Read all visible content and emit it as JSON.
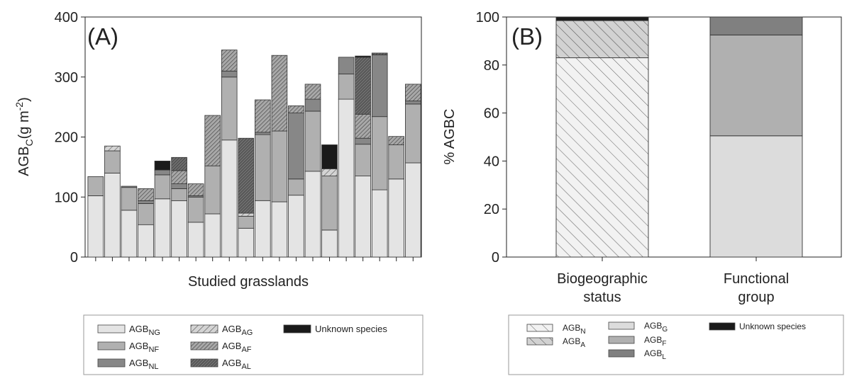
{
  "panel_a": {
    "label": "(A)",
    "ylabel": "AGBC(g m-2)",
    "xlabel": "Studied grasslands",
    "yticks": [
      "0",
      "100",
      "200",
      "300",
      "400"
    ],
    "legend": [
      {
        "key": "NG",
        "base": "AGB",
        "sub": "NG"
      },
      {
        "key": "AG",
        "base": "AGB",
        "sub": "AG"
      },
      {
        "key": "UNK",
        "base": "Unknown species",
        "sub": ""
      },
      {
        "key": "NF",
        "base": "AGB",
        "sub": "NF"
      },
      {
        "key": "AF",
        "base": "AGB",
        "sub": "AF"
      },
      {
        "key": "NL",
        "base": "AGB",
        "sub": "NL"
      },
      {
        "key": "AL",
        "base": "AGB",
        "sub": "AL"
      }
    ]
  },
  "panel_b": {
    "label": "(B)",
    "ylabel": "% AGBC",
    "yticks": [
      "0",
      "20",
      "40",
      "60",
      "80",
      "100"
    ],
    "categories": [
      [
        "Biogeographic",
        "status"
      ],
      [
        "Functional",
        "group"
      ]
    ],
    "legend": [
      {
        "key": "N",
        "base": "AGB",
        "sub": "N"
      },
      {
        "key": "G",
        "base": "AGB",
        "sub": "G"
      },
      {
        "key": "UNK",
        "base": "Unknown species",
        "sub": ""
      },
      {
        "key": "A",
        "base": "AGB",
        "sub": "A"
      },
      {
        "key": "F",
        "base": "AGB",
        "sub": "F"
      },
      {
        "key": "L",
        "base": "AGB",
        "sub": "L"
      }
    ]
  },
  "styles": {
    "NG": {
      "fill": "#e4e4e4",
      "hatch": "none"
    },
    "NF": {
      "fill": "#b0b0b0",
      "hatch": "none"
    },
    "NL": {
      "fill": "#878787",
      "hatch": "none"
    },
    "AG": {
      "fill": "#d4d4d4",
      "hatch": "sparse"
    },
    "AF": {
      "fill": "#a8a8a8",
      "hatch": "medium"
    },
    "AL": {
      "fill": "#6e6e6e",
      "hatch": "dense"
    },
    "UNK": {
      "fill": "#1a1a1a",
      "hatch": "none"
    },
    "N": {
      "fill": "#f2f2f2",
      "hatch": "back"
    },
    "A": {
      "fill": "#d2d2d2",
      "hatch": "back"
    },
    "G": {
      "fill": "#dcdcdc",
      "hatch": "none"
    },
    "F": {
      "fill": "#b0b0b0",
      "hatch": "none"
    },
    "L": {
      "fill": "#808080",
      "hatch": "none"
    }
  },
  "chart_data": [
    {
      "type": "bar",
      "stacked": true,
      "title": "(A)",
      "xlabel": "Studied grasslands",
      "ylabel": "AGBC(g m-2)",
      "ylim": [
        0,
        400
      ],
      "grid": false,
      "categories": [
        "",
        "",
        "",
        "",
        "",
        "",
        "",
        "",
        "",
        "",
        "",
        "",
        "",
        "",
        "",
        "",
        "",
        "",
        "",
        ""
      ],
      "series": [
        {
          "name": "AGBNG",
          "key": "NG",
          "values": [
            102,
            140,
            78,
            54,
            97,
            94,
            58,
            72,
            195,
            48,
            94,
            92,
            103,
            143,
            45,
            263,
            135,
            112,
            130,
            157
          ]
        },
        {
          "name": "AGBNF",
          "key": "NF",
          "values": [
            32,
            37,
            38,
            35,
            40,
            20,
            42,
            80,
            105,
            20,
            110,
            118,
            27,
            100,
            90,
            42,
            53,
            122,
            57,
            98
          ]
        },
        {
          "name": "AGBNL",
          "key": "NL",
          "values": [
            0,
            0,
            2,
            5,
            8,
            8,
            2,
            0,
            10,
            0,
            4,
            0,
            110,
            20,
            0,
            28,
            10,
            103,
            0,
            5
          ]
        },
        {
          "name": "AGBAG",
          "key": "AG",
          "values": [
            0,
            8,
            0,
            0,
            0,
            0,
            0,
            0,
            0,
            5,
            0,
            0,
            0,
            0,
            12,
            0,
            0,
            0,
            0,
            0
          ]
        },
        {
          "name": "AGBAF",
          "key": "AF",
          "values": [
            0,
            0,
            0,
            20,
            0,
            22,
            20,
            84,
            35,
            0,
            54,
            126,
            12,
            25,
            0,
            0,
            40,
            0,
            14,
            28
          ]
        },
        {
          "name": "AGBAL",
          "key": "AL",
          "values": [
            0,
            0,
            0,
            0,
            0,
            22,
            0,
            0,
            0,
            125,
            0,
            0,
            0,
            0,
            0,
            0,
            95,
            3,
            0,
            0
          ]
        },
        {
          "name": "Unknown species",
          "key": "UNK",
          "values": [
            0,
            0,
            0,
            0,
            15,
            0,
            0,
            0,
            0,
            0,
            0,
            0,
            0,
            0,
            40,
            0,
            2,
            0,
            0,
            0
          ]
        }
      ]
    },
    {
      "type": "bar",
      "stacked": true,
      "title": "(B)",
      "ylabel": "% AGBC",
      "ylim": [
        0,
        100
      ],
      "grid": false,
      "categories": [
        "Biogeographic status",
        "Functional group"
      ],
      "series": [
        {
          "name": "AGBN",
          "key": "N",
          "values": [
            83,
            0
          ]
        },
        {
          "name": "AGBA",
          "key": "A",
          "values": [
            15.5,
            0
          ]
        },
        {
          "name": "Unknown species",
          "key": "UNK",
          "values": [
            1.5,
            0
          ]
        },
        {
          "name": "AGBG",
          "key": "G",
          "values": [
            0,
            50.5
          ]
        },
        {
          "name": "AGBF",
          "key": "F",
          "values": [
            0,
            42
          ]
        },
        {
          "name": "AGBL",
          "key": "L",
          "values": [
            0,
            7.5
          ]
        }
      ]
    }
  ]
}
